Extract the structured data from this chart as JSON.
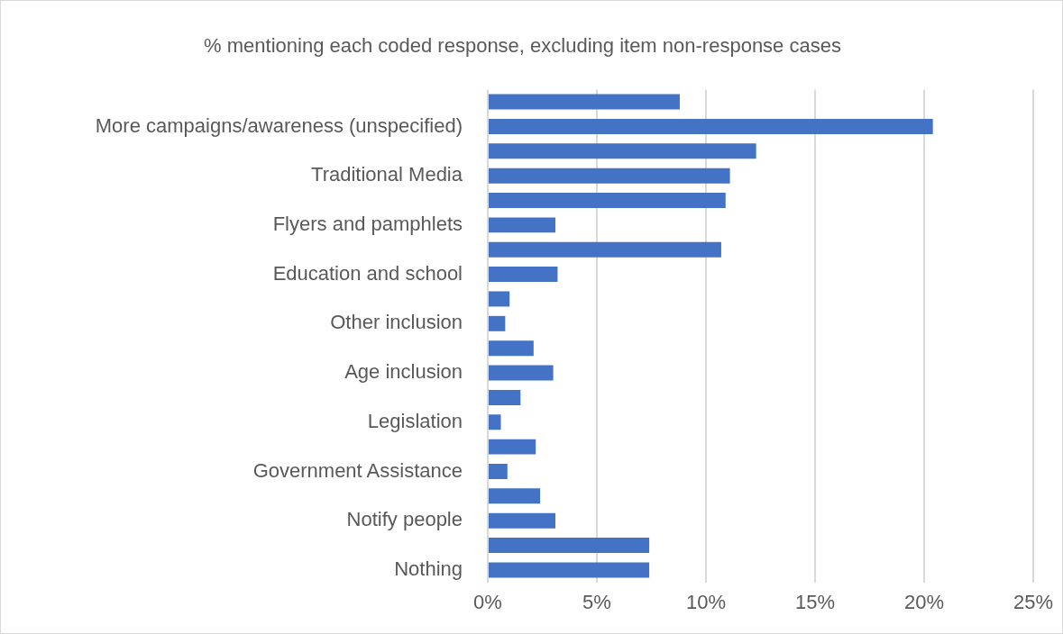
{
  "chart_data": {
    "type": "bar",
    "orientation": "horizontal",
    "title": "% mentioning each coded response, excluding item non-response cases",
    "categories": [
      null,
      "More campaigns/awareness (unspecified)",
      null,
      "Traditional Media",
      null,
      "Flyers and pamphlets",
      null,
      "Education and school",
      null,
      "Other inclusion",
      null,
      "Age inclusion",
      null,
      "Legislation",
      null,
      "Government Assistance",
      null,
      "Notify people",
      null,
      "Nothing"
    ],
    "values": [
      8.8,
      20.4,
      12.3,
      11.1,
      10.9,
      3.1,
      10.7,
      3.2,
      1.0,
      0.8,
      2.1,
      3.0,
      1.5,
      0.6,
      2.2,
      0.9,
      2.4,
      3.1,
      7.4,
      7.4
    ],
    "color": "#4472c4",
    "xlim": [
      0,
      25
    ],
    "xticks": [
      {
        "value": 0,
        "label": "0%"
      },
      {
        "value": 5,
        "label": "5%"
      },
      {
        "value": 10,
        "label": "10%"
      },
      {
        "value": 15,
        "label": "15%"
      },
      {
        "value": 20,
        "label": "20%"
      },
      {
        "value": 25,
        "label": "25%"
      }
    ],
    "grid": "x"
  }
}
